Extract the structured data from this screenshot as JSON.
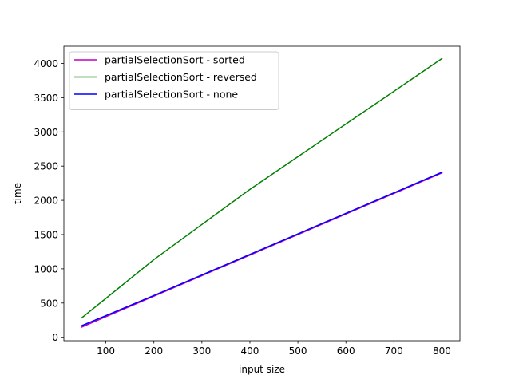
{
  "chart_data": {
    "type": "line",
    "title": "",
    "xlabel": "input size",
    "ylabel": "time",
    "xlim": [
      12.5,
      837.5
    ],
    "ylim": [
      -50,
      4250
    ],
    "xticks": [
      100,
      200,
      300,
      400,
      500,
      600,
      700,
      800
    ],
    "yticks": [
      0,
      500,
      1000,
      1500,
      2000,
      2500,
      3000,
      3500,
      4000
    ],
    "grid": false,
    "legend_position": "upper-left",
    "series": [
      {
        "name": "partialSelectionSort - sorted",
        "color": "#bf00bf",
        "x": [
          50,
          200,
          400,
          800
        ],
        "y": [
          150,
          600,
          1200,
          2400
        ]
      },
      {
        "name": "partialSelectionSort - reversed",
        "color": "#008000",
        "x": [
          50,
          200,
          400,
          800
        ],
        "y": [
          285,
          1135,
          2160,
          4070
        ]
      },
      {
        "name": "partialSelectionSort - none",
        "color": "#0000ff",
        "x": [
          50,
          200,
          400,
          800
        ],
        "y": [
          170,
          610,
          1210,
          2410
        ]
      }
    ]
  }
}
